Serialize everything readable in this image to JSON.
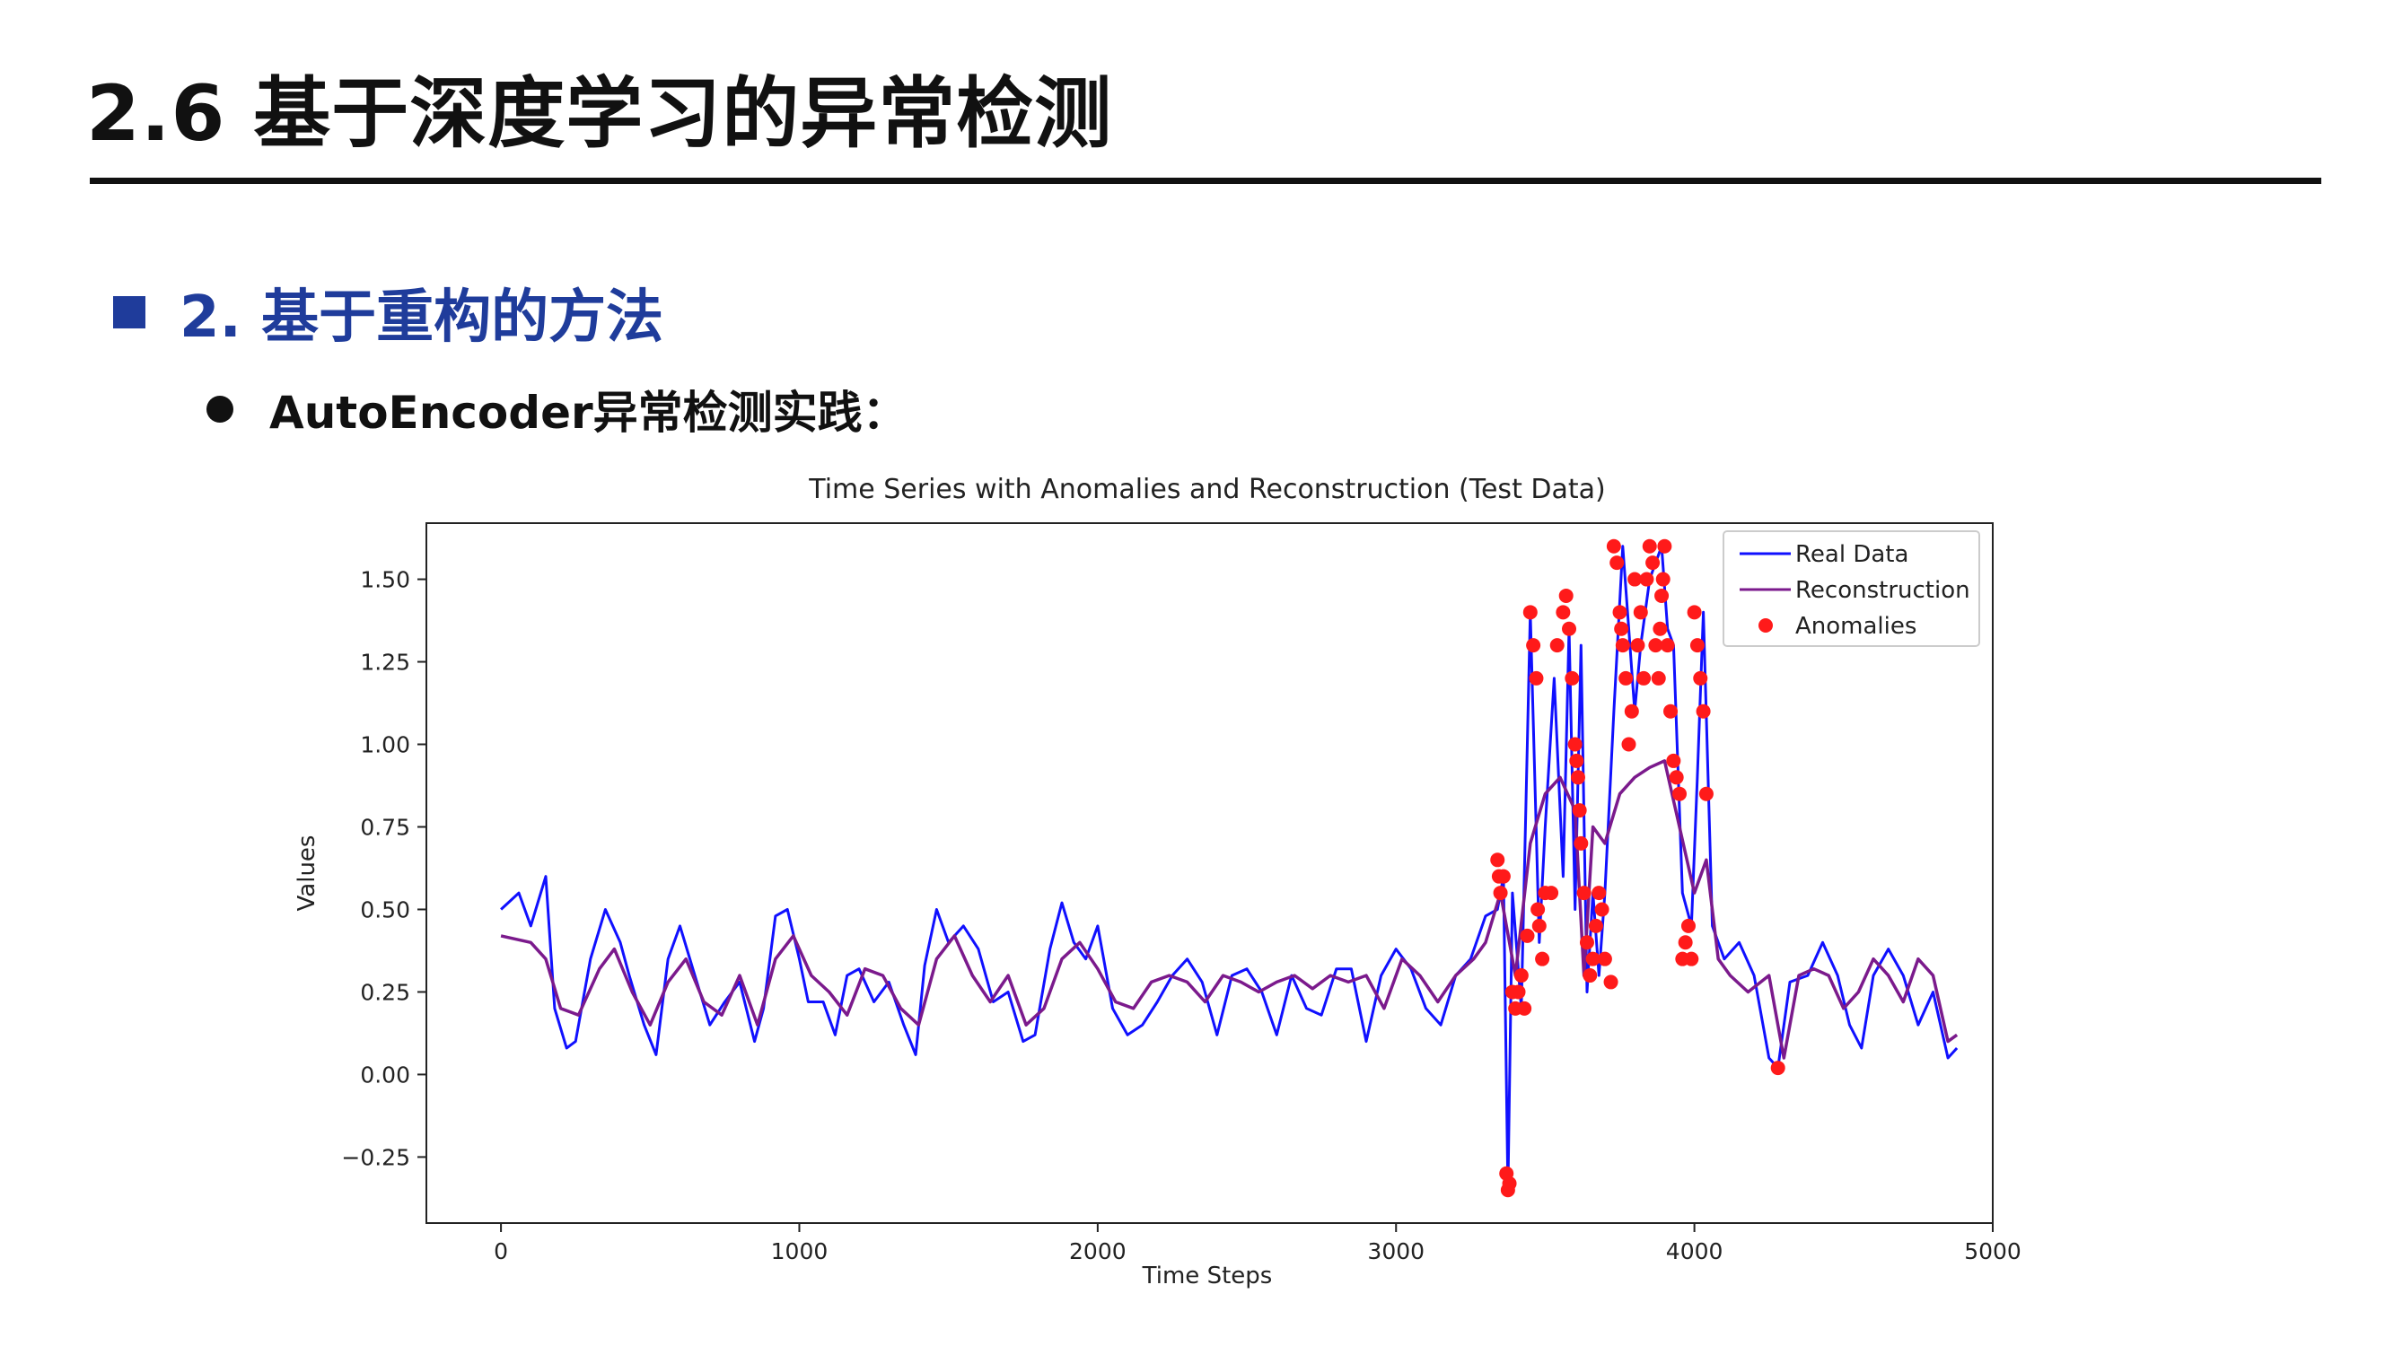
{
  "slide": {
    "title": "2.6 基于深度学习的异常检测",
    "section": "2. 基于重构的方法",
    "bullet": "AutoEncoder异常检测实践："
  },
  "colors": {
    "heading": "#1f3c9b",
    "real": "#1010ff",
    "recon": "#7b1a8c",
    "anomaly": "#ff1a1a"
  },
  "chart_data": {
    "type": "line",
    "title": "Time Series with Anomalies and Reconstruction (Test Data)",
    "xlabel": "Time Steps",
    "ylabel": "Values",
    "xlim": [
      -250,
      5000
    ],
    "ylim": [
      -0.45,
      1.67
    ],
    "xticks": [
      0,
      1000,
      2000,
      3000,
      4000,
      5000
    ],
    "xtick_labels": [
      "0",
      "1000",
      "2000",
      "3000",
      "4000",
      "5000"
    ],
    "yticks": [
      -0.25,
      0.0,
      0.25,
      0.5,
      0.75,
      1.0,
      1.25,
      1.5
    ],
    "ytick_labels": [
      "−0.25",
      "0.00",
      "0.25",
      "0.50",
      "0.75",
      "1.00",
      "1.25",
      "1.50"
    ],
    "grid": false,
    "legend_position": "top-right",
    "legend": [
      "Real Data",
      "Reconstruction",
      "Anomalies"
    ],
    "series": [
      {
        "name": "Real Data",
        "x": [
          0,
          60,
          100,
          150,
          180,
          220,
          250,
          300,
          350,
          400,
          430,
          480,
          520,
          560,
          600,
          650,
          700,
          750,
          800,
          850,
          880,
          920,
          960,
          1000,
          1030,
          1080,
          1120,
          1160,
          1200,
          1250,
          1300,
          1350,
          1390,
          1420,
          1460,
          1500,
          1550,
          1600,
          1650,
          1700,
          1750,
          1790,
          1840,
          1880,
          1920,
          1960,
          2000,
          2050,
          2100,
          2150,
          2200,
          2250,
          2300,
          2350,
          2400,
          2450,
          2500,
          2550,
          2600,
          2650,
          2700,
          2750,
          2800,
          2850,
          2900,
          2950,
          3000,
          3050,
          3100,
          3150,
          3200,
          3250,
          3300,
          3340,
          3360,
          3375,
          3390,
          3420,
          3450,
          3480,
          3500,
          3530,
          3560,
          3580,
          3600,
          3620,
          3640,
          3660,
          3680,
          3700,
          3730,
          3760,
          3780,
          3800,
          3820,
          3850,
          3870,
          3890,
          3910,
          3930,
          3960,
          3990,
          4010,
          4030,
          4060,
          4100,
          4150,
          4200,
          4250,
          4280,
          4320,
          4380,
          4430,
          4480,
          4520,
          4560,
          4600,
          4650,
          4700,
          4750,
          4800,
          4850,
          4880
        ],
        "y": [
          0.5,
          0.55,
          0.45,
          0.6,
          0.2,
          0.08,
          0.1,
          0.35,
          0.5,
          0.4,
          0.3,
          0.15,
          0.06,
          0.35,
          0.45,
          0.3,
          0.15,
          0.22,
          0.28,
          0.1,
          0.2,
          0.48,
          0.5,
          0.35,
          0.22,
          0.22,
          0.12,
          0.3,
          0.32,
          0.22,
          0.28,
          0.15,
          0.06,
          0.33,
          0.5,
          0.4,
          0.45,
          0.38,
          0.22,
          0.25,
          0.1,
          0.12,
          0.38,
          0.52,
          0.4,
          0.35,
          0.45,
          0.2,
          0.12,
          0.15,
          0.22,
          0.3,
          0.35,
          0.28,
          0.12,
          0.3,
          0.32,
          0.25,
          0.12,
          0.3,
          0.2,
          0.18,
          0.32,
          0.32,
          0.1,
          0.3,
          0.38,
          0.32,
          0.2,
          0.15,
          0.3,
          0.35,
          0.48,
          0.5,
          0.6,
          -0.35,
          0.55,
          0.2,
          1.4,
          0.4,
          0.75,
          1.2,
          0.6,
          1.35,
          0.5,
          1.3,
          0.25,
          0.55,
          0.3,
          0.55,
          1.1,
          1.6,
          1.35,
          1.1,
          1.3,
          1.5,
          1.55,
          1.6,
          1.35,
          1.3,
          0.55,
          0.45,
          0.9,
          1.4,
          0.45,
          0.35,
          0.4,
          0.3,
          0.05,
          0.02,
          0.28,
          0.3,
          0.4,
          0.3,
          0.15,
          0.08,
          0.3,
          0.38,
          0.3,
          0.15,
          0.25,
          0.05,
          0.08
        ]
      },
      {
        "name": "Reconstruction",
        "x": [
          0,
          100,
          150,
          200,
          260,
          330,
          380,
          440,
          500,
          560,
          620,
          680,
          740,
          800,
          860,
          920,
          980,
          1040,
          1100,
          1160,
          1220,
          1280,
          1340,
          1400,
          1460,
          1520,
          1580,
          1640,
          1700,
          1760,
          1820,
          1880,
          1940,
          2000,
          2060,
          2120,
          2180,
          2240,
          2300,
          2360,
          2420,
          2480,
          2540,
          2600,
          2660,
          2720,
          2780,
          2840,
          2900,
          2960,
          3020,
          3080,
          3140,
          3200,
          3260,
          3300,
          3350,
          3400,
          3450,
          3500,
          3550,
          3600,
          3630,
          3660,
          3700,
          3750,
          3800,
          3850,
          3900,
          3950,
          4000,
          4040,
          4080,
          4120,
          4180,
          4250,
          4300,
          4350,
          4400,
          4450,
          4500,
          4550,
          4600,
          4650,
          4700,
          4750,
          4800,
          4850,
          4880
        ],
        "y": [
          0.42,
          0.4,
          0.35,
          0.2,
          0.18,
          0.32,
          0.38,
          0.25,
          0.15,
          0.28,
          0.35,
          0.22,
          0.18,
          0.3,
          0.15,
          0.35,
          0.42,
          0.3,
          0.25,
          0.18,
          0.32,
          0.3,
          0.2,
          0.15,
          0.35,
          0.42,
          0.3,
          0.22,
          0.3,
          0.15,
          0.2,
          0.35,
          0.4,
          0.32,
          0.22,
          0.2,
          0.28,
          0.3,
          0.28,
          0.22,
          0.3,
          0.28,
          0.25,
          0.28,
          0.3,
          0.26,
          0.3,
          0.28,
          0.3,
          0.2,
          0.35,
          0.3,
          0.22,
          0.3,
          0.35,
          0.4,
          0.55,
          0.3,
          0.7,
          0.85,
          0.9,
          0.8,
          0.3,
          0.75,
          0.7,
          0.85,
          0.9,
          0.93,
          0.95,
          0.75,
          0.55,
          0.65,
          0.35,
          0.3,
          0.25,
          0.3,
          0.05,
          0.3,
          0.32,
          0.3,
          0.2,
          0.25,
          0.35,
          0.3,
          0.22,
          0.35,
          0.3,
          0.1,
          0.12
        ]
      },
      {
        "name": "Anomalies",
        "x": [
          3340,
          3345,
          3350,
          3360,
          3370,
          3375,
          3380,
          3390,
          3400,
          3410,
          3420,
          3430,
          3440,
          3450,
          3460,
          3470,
          3475,
          3480,
          3490,
          3500,
          3520,
          3540,
          3560,
          3570,
          3580,
          3590,
          3600,
          3605,
          3610,
          3615,
          3620,
          3630,
          3640,
          3650,
          3660,
          3670,
          3680,
          3690,
          3700,
          3720,
          3730,
          3740,
          3750,
          3755,
          3760,
          3770,
          3780,
          3790,
          3800,
          3810,
          3820,
          3830,
          3840,
          3850,
          3860,
          3870,
          3880,
          3885,
          3890,
          3895,
          3900,
          3910,
          3920,
          3930,
          3940,
          3950,
          3960,
          3970,
          3980,
          3990,
          4000,
          4010,
          4020,
          4030,
          4040,
          4280
        ],
        "y": [
          0.65,
          0.6,
          0.55,
          0.6,
          -0.3,
          -0.35,
          -0.33,
          0.25,
          0.2,
          0.25,
          0.3,
          0.2,
          0.42,
          1.4,
          1.3,
          1.2,
          0.5,
          0.45,
          0.35,
          0.55,
          0.55,
          1.3,
          1.4,
          1.45,
          1.35,
          1.2,
          1.0,
          0.95,
          0.9,
          0.8,
          0.7,
          0.55,
          0.4,
          0.3,
          0.35,
          0.45,
          0.55,
          0.5,
          0.35,
          0.28,
          1.6,
          1.55,
          1.4,
          1.35,
          1.3,
          1.2,
          1.0,
          1.1,
          1.5,
          1.3,
          1.4,
          1.2,
          1.5,
          1.6,
          1.55,
          1.3,
          1.2,
          1.35,
          1.45,
          1.5,
          1.6,
          1.3,
          1.1,
          0.95,
          0.9,
          0.85,
          0.35,
          0.4,
          0.45,
          0.35,
          1.4,
          1.3,
          1.2,
          1.1,
          0.85,
          0.02
        ]
      }
    ]
  }
}
